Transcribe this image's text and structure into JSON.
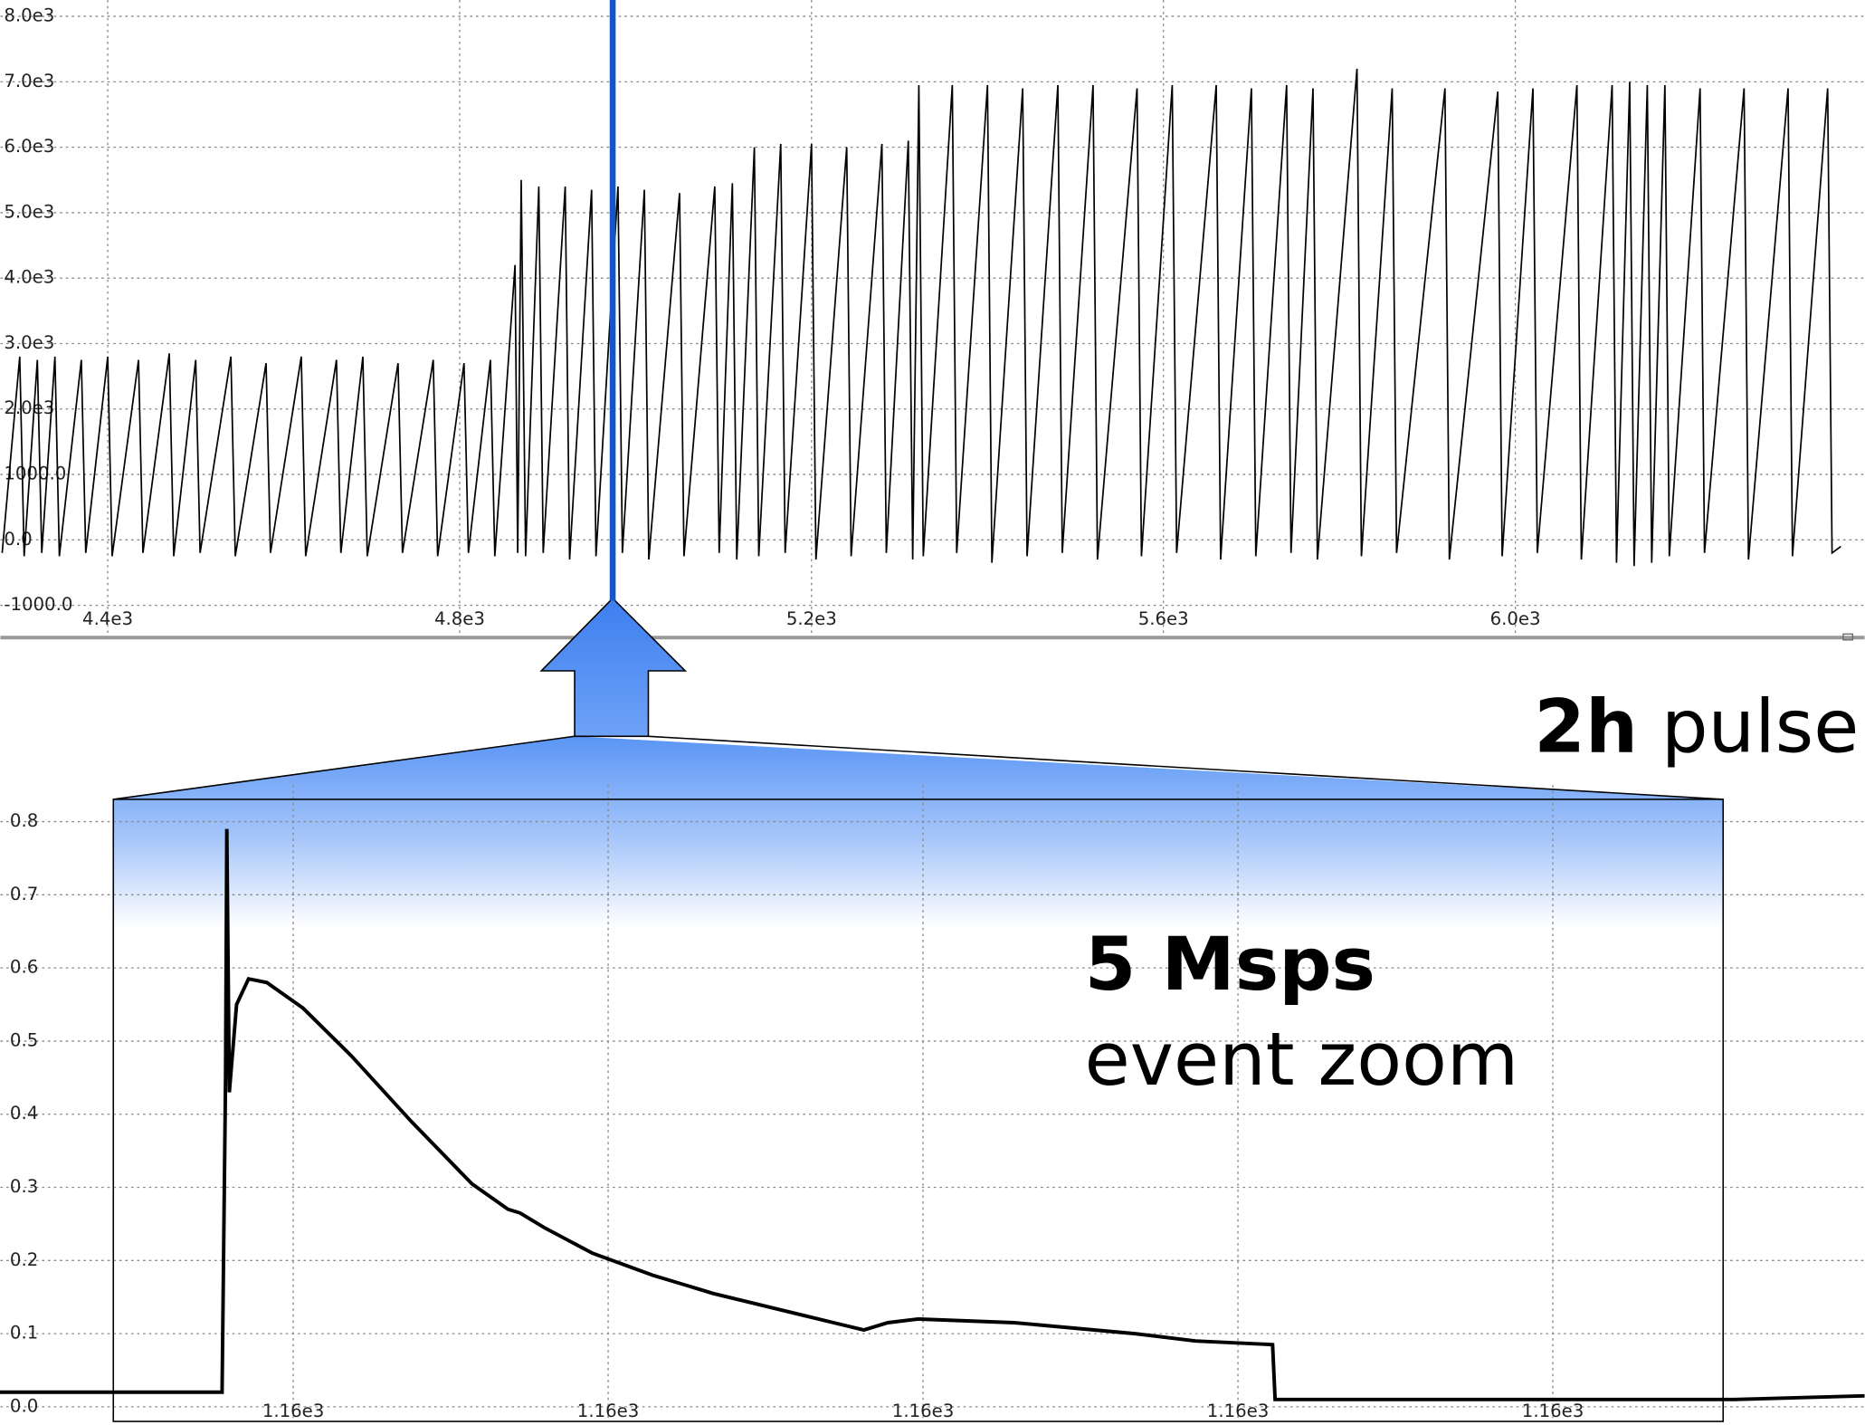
{
  "chart_data": [
    {
      "type": "line",
      "series": [
        {
          "color": "#000000",
          "x": [
            4280,
            4300,
            4305,
            4320,
            4325,
            4340,
            4345,
            4370,
            4375,
            4400,
            4405,
            4435,
            4440,
            4470,
            4475,
            4500,
            4505,
            4540,
            4545,
            4580,
            4585,
            4620,
            4625,
            4660,
            4665,
            4690,
            4695,
            4730,
            4735,
            4770,
            4775,
            4805,
            4810,
            4835,
            4840,
            4863,
            4866,
            4870,
            4875,
            4890,
            4895,
            4920,
            4925,
            4950,
            4955,
            4980,
            4985,
            5010,
            5015,
            5050,
            5055,
            5090,
            5095,
            5110,
            5115,
            5135,
            5140,
            5165,
            5170,
            5200,
            5205,
            5240,
            5245,
            5280,
            5285,
            5310,
            5315,
            5322,
            5327,
            5360,
            5365,
            5400,
            5405,
            5440,
            5445,
            5480,
            5485,
            5520,
            5525,
            5570,
            5575,
            5610,
            5615,
            5660,
            5665,
            5700,
            5705,
            5740,
            5745,
            5770,
            5775,
            5820,
            5825,
            5860,
            5865,
            5920,
            5925,
            5980,
            5985,
            6020,
            6025,
            6070,
            6075,
            6110,
            6115,
            6130,
            6135,
            6150,
            6155,
            6170,
            6175,
            6210,
            6215,
            6260,
            6265,
            6310,
            6315,
            6355,
            6360,
            6370
          ],
          "values": [
            -200,
            2800,
            -250,
            2750,
            -200,
            2800,
            -250,
            2750,
            -200,
            2800,
            -250,
            2750,
            -200,
            2850,
            -250,
            2750,
            -200,
            2800,
            -250,
            2700,
            -200,
            2800,
            -250,
            2750,
            -200,
            2800,
            -250,
            2700,
            -200,
            2750,
            -250,
            2700,
            -200,
            2750,
            -250,
            4200,
            -200,
            5500,
            -250,
            5400,
            -200,
            5400,
            -300,
            5350,
            -250,
            5400,
            -200,
            5350,
            -300,
            5300,
            -250,
            5400,
            -200,
            5450,
            -300,
            6000,
            -250,
            6050,
            -200,
            6050,
            -300,
            6000,
            -250,
            6050,
            -200,
            6100,
            -300,
            6950,
            -250,
            6950,
            -200,
            6950,
            -350,
            6900,
            -250,
            6950,
            -200,
            6950,
            -300,
            6900,
            -250,
            6950,
            -200,
            6950,
            -300,
            6900,
            -250,
            6950,
            -200,
            6900,
            -300,
            7200,
            -250,
            6900,
            -200,
            6900,
            -300,
            6850,
            -250,
            6900,
            -200,
            6950,
            -300,
            6950,
            -350,
            7000,
            -400,
            6950,
            -350,
            6950,
            -250,
            6900,
            -200,
            6900,
            -300,
            6900,
            -250,
            6900,
            -200,
            -100
          ]
        }
      ],
      "xlim": [
        4278,
        6397
      ],
      "ylim": [
        -1420,
        8250
      ],
      "xticks": [
        {
          "value": 4400,
          "label": "4.4e3"
        },
        {
          "value": 4800,
          "label": "4.8e3"
        },
        {
          "value": 5200,
          "label": "5.2e3"
        },
        {
          "value": 5600,
          "label": "5.6e3"
        },
        {
          "value": 6000,
          "label": "6.0e3"
        }
      ],
      "yticks": [
        {
          "value": 8000,
          "label": "8.0e3"
        },
        {
          "value": 7000,
          "label": "7.0e3"
        },
        {
          "value": 6000,
          "label": "6.0e3"
        },
        {
          "value": 5000,
          "label": "5.0e3"
        },
        {
          "value": 4000,
          "label": "4.0e3"
        },
        {
          "value": 3000,
          "label": "3.0e3"
        },
        {
          "value": 2000,
          "label": "2.0e3"
        },
        {
          "value": 1000,
          "label": "1000.0"
        },
        {
          "value": 0,
          "label": "0.0"
        },
        {
          "value": -1000,
          "label": "-1000.0"
        }
      ],
      "grid": true,
      "annotation": {
        "bold": "2h",
        "text": "pulse"
      }
    },
    {
      "type": "line",
      "series": [
        {
          "color": "#000000",
          "x": [
            1160.0065,
            1160.0399,
            1160.0774,
            1160.0785,
            1160.0789,
            1160.0797,
            1160.082,
            1160.0858,
            1160.0916,
            1160.1031,
            1160.1184,
            1160.1375,
            1160.1567,
            1160.1682,
            1160.172,
            1160.1797,
            1160.195,
            1160.2141,
            1160.2333,
            1160.2524,
            1160.2716,
            1160.2812,
            1160.2888,
            1160.2984,
            1160.329,
            1160.3673,
            1160.3865,
            1160.411,
            1160.4118,
            1160.4631,
            1160.5577,
            1160.599
          ],
          "values": [
            0.02,
            0.02,
            0.02,
            0.45,
            0.79,
            0.43,
            0.55,
            0.585,
            0.58,
            0.545,
            0.48,
            0.39,
            0.305,
            0.27,
            0.265,
            0.245,
            0.21,
            0.18,
            0.155,
            0.135,
            0.115,
            0.105,
            0.115,
            0.12,
            0.115,
            0.1,
            0.09,
            0.085,
            0.01,
            0.01,
            0.01,
            0.015
          ]
        }
      ],
      "xlim": [
        1160.007,
        1160.599
      ],
      "ylim": [
        -0.02,
        0.85
      ],
      "xticks": [
        {
          "value": 1160.1,
          "label": "1.16e3"
        },
        {
          "value": 1160.2,
          "label": "1.16e3"
        },
        {
          "value": 1160.3,
          "label": "1.16e3"
        },
        {
          "value": 1160.4,
          "label": "1.16e3"
        },
        {
          "value": 1160.5,
          "label": "1.16e3"
        }
      ],
      "yticks": [
        {
          "value": 0,
          "label": "0.0"
        },
        0.1,
        0.2,
        0.3,
        0.4,
        0.5,
        0.6,
        0.7,
        0.8
      ],
      "grid": true,
      "annotation": {
        "bold": "5 Msps",
        "text": "event zoom"
      }
    }
  ]
}
